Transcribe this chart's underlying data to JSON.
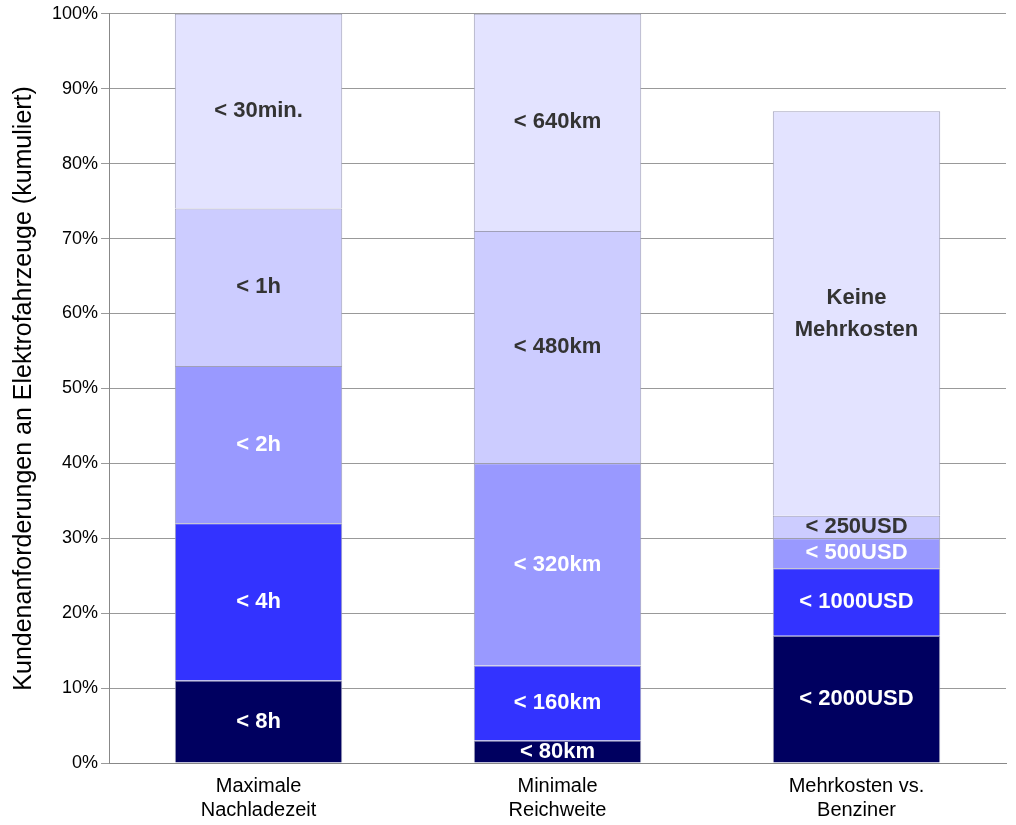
{
  "chart_data": {
    "type": "bar",
    "stacked": true,
    "ylabel": "Kundenanforderungen an Elektrofahrzeuge (kumuliert)",
    "categories": [
      "Maximale\nNachladezeit",
      "Minimale\nReichweite",
      "Mehrkosten vs.\nBenziner"
    ],
    "series": [
      {
        "color": "#000060",
        "values": [
          11,
          3,
          17
        ],
        "value_labels": [
          "< 8h",
          "< 80km",
          "< 2000USD"
        ]
      },
      {
        "color": "#3333ff",
        "values": [
          21,
          10,
          9
        ],
        "value_labels": [
          "< 4h",
          "< 160km",
          "< 1000USD"
        ]
      },
      {
        "color": "#9999ff",
        "values": [
          21,
          27,
          4
        ],
        "value_labels": [
          "< 2h",
          "< 320km",
          "< 500USD"
        ]
      },
      {
        "color": "#ccccff",
        "values": [
          21,
          31,
          3
        ],
        "value_labels": [
          "< 1h",
          "< 480km",
          "< 250USD"
        ]
      },
      {
        "color": "#e3e3ff",
        "values": [
          26,
          29,
          54
        ],
        "value_labels": [
          "< 30min.",
          "< 640km",
          "Keine\nMehrkosten"
        ]
      }
    ],
    "ylim": [
      0,
      100
    ],
    "yticks": [
      {
        "value": 0,
        "label": "0%"
      },
      {
        "value": 10,
        "label": "10%"
      },
      {
        "value": 20,
        "label": "20%"
      },
      {
        "value": 30,
        "label": "30%"
      },
      {
        "value": 40,
        "label": "40%"
      },
      {
        "value": 50,
        "label": "50%"
      },
      {
        "value": 60,
        "label": "60%"
      },
      {
        "value": 70,
        "label": "70%"
      },
      {
        "value": 80,
        "label": "80%"
      },
      {
        "value": 90,
        "label": "90%"
      },
      {
        "value": 100,
        "label": "100%"
      }
    ],
    "grid": "y",
    "legend": false
  }
}
